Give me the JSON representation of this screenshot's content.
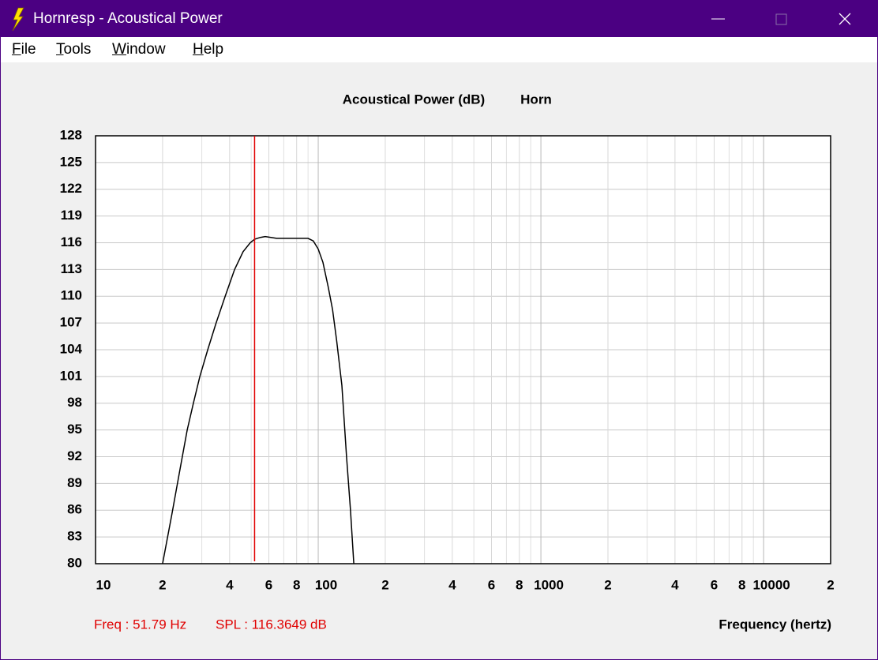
{
  "window": {
    "title": "Hornresp - Acoustical Power",
    "menu": [
      "File",
      "Tools",
      "Window",
      "Help"
    ]
  },
  "chart_data": {
    "type": "line",
    "title": "Acoustical Power (dB)",
    "subtitle": "Horn",
    "x_label": "Frequency (hertz)",
    "x_scale": "log",
    "xlim": [
      10,
      20000
    ],
    "ylim": [
      80,
      128
    ],
    "xticks": [
      10,
      {
        "value": 20,
        "label": "2"
      },
      {
        "value": 40,
        "label": "4"
      },
      {
        "value": 60,
        "label": "6"
      },
      {
        "value": 80,
        "label": "8"
      },
      100,
      {
        "value": 200,
        "label": "2"
      },
      {
        "value": 400,
        "label": "4"
      },
      {
        "value": 600,
        "label": "6"
      },
      {
        "value": 800,
        "label": "8"
      },
      1000,
      {
        "value": 2000,
        "label": "2"
      },
      {
        "value": 4000,
        "label": "4"
      },
      {
        "value": 6000,
        "label": "6"
      },
      {
        "value": 8000,
        "label": "8"
      },
      10000,
      {
        "value": 20000,
        "label": "2"
      }
    ],
    "xminor": [
      30,
      50,
      70,
      90,
      300,
      500,
      700,
      900,
      3000,
      5000,
      7000,
      9000
    ],
    "yticks": [
      80,
      83,
      86,
      89,
      92,
      95,
      98,
      101,
      104,
      107,
      110,
      113,
      116,
      119,
      122,
      125,
      128
    ],
    "grid": true,
    "color": "#000000",
    "x": [
      20,
      22,
      24,
      25.8,
      27.5,
      29.4,
      31.9,
      34.8,
      38.2,
      42.1,
      46,
      49.5,
      51.79,
      55,
      57.8,
      65,
      80,
      90,
      95,
      100,
      105,
      111,
      116,
      121,
      127.7,
      134,
      139.6,
      144.5
    ],
    "values": [
      80,
      85.5,
      90.7,
      95,
      98,
      101,
      104,
      107,
      110,
      113,
      115,
      116,
      116.4,
      116.6,
      116.7,
      116.5,
      116.5,
      116.5,
      116.2,
      115.3,
      113.8,
      111,
      108.5,
      105,
      100,
      92,
      86,
      80
    ],
    "cursor_x": 51.79,
    "cursor_color": "#e00000",
    "annotations": [
      "Freq : 51.79 Hz",
      "SPL : 116.3649 dB"
    ]
  }
}
